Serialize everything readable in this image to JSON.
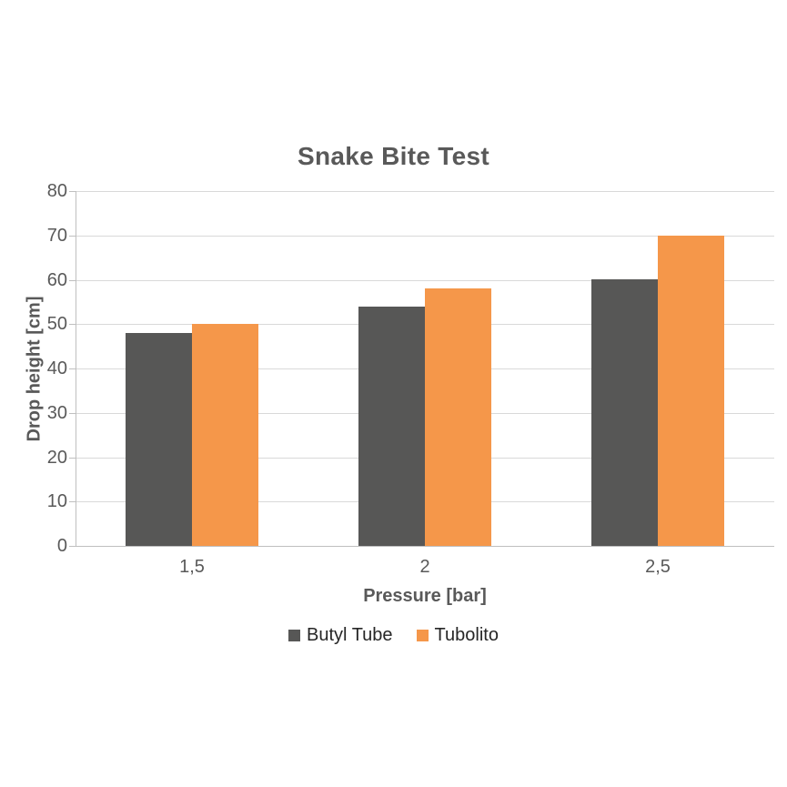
{
  "chart_data": {
    "type": "bar",
    "title": "Snake Bite Test",
    "xlabel": "Pressure [bar]",
    "ylabel": "Drop height [cm]",
    "categories": [
      "1,5",
      "2",
      "2,5"
    ],
    "series": [
      {
        "name": "Butyl Tube",
        "color": "#575756",
        "values": [
          48,
          54,
          60
        ]
      },
      {
        "name": "Tubolito",
        "color": "#f5974a",
        "values": [
          50,
          58,
          70
        ]
      }
    ],
    "ylim": [
      0,
      80
    ],
    "ytick_step": 10,
    "yticks": [
      0,
      10,
      20,
      30,
      40,
      50,
      60,
      70,
      80
    ],
    "grid": true,
    "legend_position": "bottom"
  },
  "colors": {
    "title_text": "#595959",
    "axis_text": "#595959",
    "legend_text": "#262626",
    "gridline": "#d9d9d9",
    "axis_line": "#bfbfbf",
    "background": "#ffffff"
  }
}
